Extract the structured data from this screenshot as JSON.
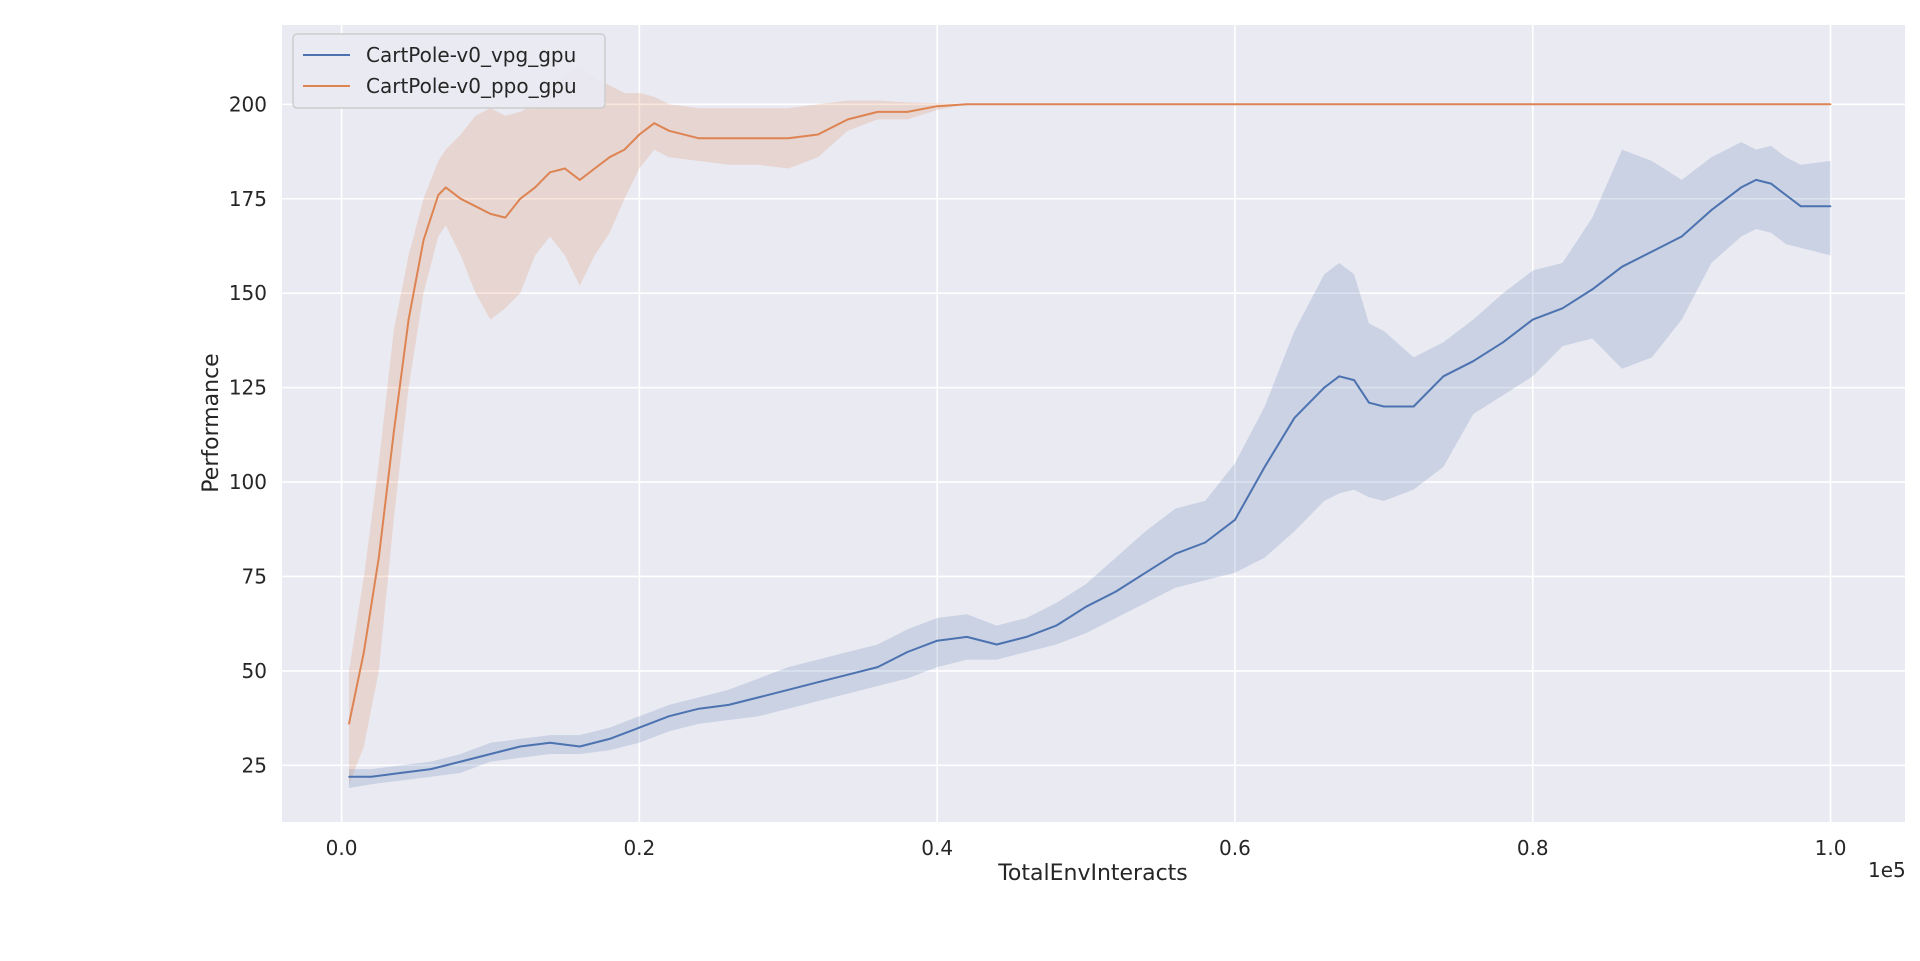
{
  "chart_data": {
    "type": "line",
    "xlabel": "TotalEnvInteracts",
    "ylabel": "Performance",
    "x_offset_label": "1e5",
    "xlim": [
      -0.04,
      1.05
    ],
    "ylim": [
      10,
      221
    ],
    "xticks": [
      0.0,
      0.2,
      0.4,
      0.6,
      0.8,
      1.0
    ],
    "xtick_labels": [
      "0.0",
      "0.2",
      "0.4",
      "0.6",
      "0.8",
      "1.0"
    ],
    "yticks": [
      25,
      50,
      75,
      100,
      125,
      150,
      175,
      200
    ],
    "ytick_labels": [
      "25",
      "50",
      "75",
      "100",
      "125",
      "150",
      "175",
      "200"
    ],
    "grid": true,
    "legend_position": "top-left",
    "background_color": "#eaeaf2",
    "series": [
      {
        "name": "CartPole-v0_vpg_gpu",
        "color": "#4c72b0",
        "x": [
          0.005,
          0.02,
          0.04,
          0.06,
          0.08,
          0.1,
          0.12,
          0.14,
          0.16,
          0.18,
          0.2,
          0.22,
          0.24,
          0.26,
          0.28,
          0.3,
          0.32,
          0.34,
          0.36,
          0.38,
          0.4,
          0.42,
          0.44,
          0.46,
          0.48,
          0.5,
          0.52,
          0.54,
          0.56,
          0.58,
          0.6,
          0.62,
          0.64,
          0.66,
          0.67,
          0.68,
          0.69,
          0.7,
          0.72,
          0.74,
          0.76,
          0.78,
          0.8,
          0.82,
          0.84,
          0.86,
          0.88,
          0.9,
          0.92,
          0.94,
          0.95,
          0.96,
          0.97,
          0.98,
          1.0
        ],
        "y": [
          22,
          22,
          23,
          24,
          26,
          28,
          30,
          31,
          30,
          32,
          35,
          38,
          40,
          41,
          43,
          45,
          47,
          49,
          51,
          55,
          58,
          59,
          57,
          59,
          62,
          67,
          71,
          76,
          81,
          84,
          90,
          104,
          117,
          125,
          128,
          127,
          121,
          120,
          120,
          128,
          132,
          137,
          143,
          146,
          151,
          157,
          161,
          165,
          172,
          178,
          180,
          179,
          176,
          173,
          173
        ],
        "lower": [
          19,
          20,
          21,
          22,
          23,
          26,
          27,
          28,
          28,
          29,
          31,
          34,
          36,
          37,
          38,
          40,
          42,
          44,
          46,
          48,
          51,
          53,
          53,
          55,
          57,
          60,
          64,
          68,
          72,
          74,
          76,
          80,
          87,
          95,
          97,
          98,
          96,
          95,
          98,
          104,
          118,
          123,
          128,
          136,
          138,
          130,
          133,
          143,
          158,
          165,
          167,
          166,
          163,
          162,
          160
        ],
        "upper": [
          24,
          24,
          25,
          26,
          28,
          31,
          32,
          33,
          33,
          35,
          38,
          41,
          43,
          45,
          48,
          51,
          53,
          55,
          57,
          61,
          64,
          65,
          62,
          64,
          68,
          73,
          80,
          87,
          93,
          95,
          105,
          120,
          140,
          155,
          158,
          155,
          142,
          140,
          133,
          137,
          143,
          150,
          156,
          158,
          170,
          188,
          185,
          180,
          186,
          190,
          188,
          189,
          186,
          184,
          185
        ]
      },
      {
        "name": "CartPole-v0_ppo_gpu",
        "color": "#dd8452",
        "x": [
          0.005,
          0.015,
          0.025,
          0.035,
          0.045,
          0.055,
          0.065,
          0.07,
          0.08,
          0.09,
          0.1,
          0.11,
          0.12,
          0.13,
          0.14,
          0.15,
          0.16,
          0.17,
          0.18,
          0.19,
          0.2,
          0.21,
          0.22,
          0.24,
          0.26,
          0.28,
          0.3,
          0.32,
          0.34,
          0.36,
          0.38,
          0.4,
          0.42,
          0.45,
          0.5,
          0.6,
          0.7,
          0.8,
          0.9,
          1.0
        ],
        "y": [
          36,
          55,
          80,
          113,
          143,
          164,
          176,
          178,
          175,
          173,
          171,
          170,
          175,
          178,
          182,
          183,
          180,
          183,
          186,
          188,
          192,
          195,
          193,
          191,
          191,
          191,
          191,
          192,
          196,
          198,
          198,
          199.5,
          200,
          200,
          200,
          200,
          200,
          200,
          200,
          200
        ],
        "lower": [
          20,
          30,
          50,
          90,
          125,
          150,
          165,
          168,
          160,
          150,
          143,
          146,
          150,
          160,
          165,
          160,
          152,
          160,
          166,
          175,
          183,
          188,
          186,
          185,
          184,
          184,
          183,
          186,
          193,
          196,
          196,
          198.5,
          200,
          200,
          200,
          200,
          200,
          200,
          200,
          200
        ],
        "upper": [
          50,
          75,
          105,
          140,
          160,
          175,
          185,
          188,
          192,
          197,
          199,
          197,
          198,
          200,
          203,
          208,
          210,
          207,
          205,
          203,
          203,
          202,
          200,
          199,
          199,
          199,
          199,
          200,
          201,
          201,
          200.5,
          200.3,
          200,
          200,
          200,
          200,
          200,
          200,
          200,
          200
        ]
      }
    ]
  }
}
